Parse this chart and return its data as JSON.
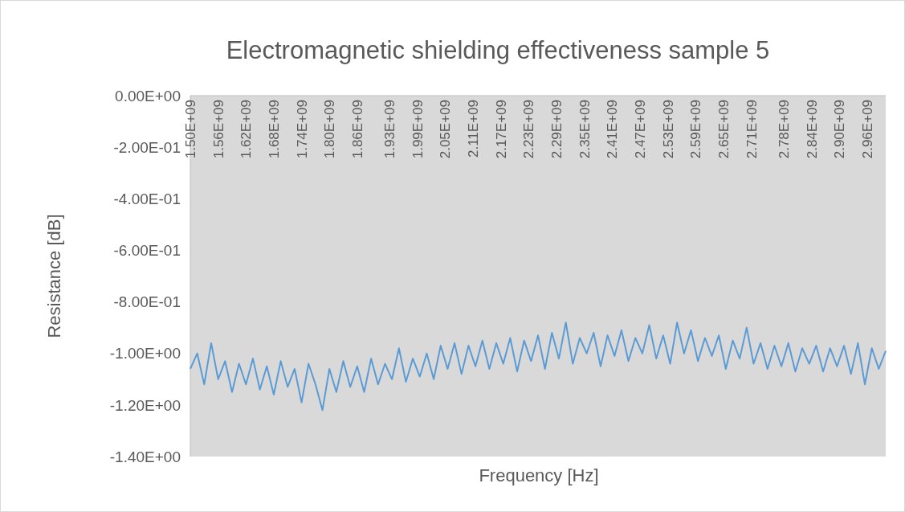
{
  "chart_data": {
    "type": "line",
    "title": "Electromagnetic shielding effectiveness sample 5",
    "xlabel": "Frequency [Hz]",
    "ylabel": "Resistance [dB]",
    "xlim": [
      1500000000.0,
      3000000000.0
    ],
    "xticks": [
      {
        "value": 1500000000.0,
        "label": "1.50E+09"
      },
      {
        "value": 1560000000.0,
        "label": "1.56E+09"
      },
      {
        "value": 1620000000.0,
        "label": "1.62E+09"
      },
      {
        "value": 1680000000.0,
        "label": "1.68E+09"
      },
      {
        "value": 1740000000.0,
        "label": "1.74E+09"
      },
      {
        "value": 1800000000.0,
        "label": "1.80E+09"
      },
      {
        "value": 1860000000.0,
        "label": "1.86E+09"
      },
      {
        "value": 1930000000.0,
        "label": "1.93E+09"
      },
      {
        "value": 1990000000.0,
        "label": "1.99E+09"
      },
      {
        "value": 2050000000.0,
        "label": "2.05E+09"
      },
      {
        "value": 2110000000.0,
        "label": "2.11E+09"
      },
      {
        "value": 2170000000.0,
        "label": "2.17E+09"
      },
      {
        "value": 2230000000.0,
        "label": "2.23E+09"
      },
      {
        "value": 2290000000.0,
        "label": "2.29E+09"
      },
      {
        "value": 2350000000.0,
        "label": "2.35E+09"
      },
      {
        "value": 2410000000.0,
        "label": "2.41E+09"
      },
      {
        "value": 2470000000.0,
        "label": "2.47E+09"
      },
      {
        "value": 2530000000.0,
        "label": "2.53E+09"
      },
      {
        "value": 2590000000.0,
        "label": "2.59E+09"
      },
      {
        "value": 2650000000.0,
        "label": "2.65E+09"
      },
      {
        "value": 2710000000.0,
        "label": "2.71E+09"
      },
      {
        "value": 2780000000.0,
        "label": "2.78E+09"
      },
      {
        "value": 2840000000.0,
        "label": "2.84E+09"
      },
      {
        "value": 2900000000.0,
        "label": "2.90E+09"
      },
      {
        "value": 2960000000.0,
        "label": "2.96E+09"
      }
    ],
    "ylim": [
      -1.4,
      0
    ],
    "yticks": [
      {
        "value": 0,
        "label": "0.00E+00"
      },
      {
        "value": -0.2,
        "label": "-2.00E-01"
      },
      {
        "value": -0.4,
        "label": "-4.00E-01"
      },
      {
        "value": -0.6,
        "label": "-6.00E-01"
      },
      {
        "value": -0.8,
        "label": "-8.00E-01"
      },
      {
        "value": -1.0,
        "label": "-1.00E+00"
      },
      {
        "value": -1.2,
        "label": "-1.20E+00"
      },
      {
        "value": -1.4,
        "label": "-1.40E+00"
      }
    ],
    "series": [
      {
        "color": "#5b9bd5",
        "x": [
          1500000000.0,
          1515000000.0,
          1530000000.0,
          1545000000.0,
          1560000000.0,
          1575000000.0,
          1590000000.0,
          1605000000.0,
          1620000000.0,
          1635000000.0,
          1650000000.0,
          1665000000.0,
          1680000000.0,
          1695000000.0,
          1710000000.0,
          1725000000.0,
          1740000000.0,
          1755000000.0,
          1770000000.0,
          1785000000.0,
          1800000000.0,
          1815000000.0,
          1830000000.0,
          1845000000.0,
          1860000000.0,
          1875000000.0,
          1890000000.0,
          1905000000.0,
          1920000000.0,
          1935000000.0,
          1950000000.0,
          1965000000.0,
          1980000000.0,
          1995000000.0,
          2010000000.0,
          2025000000.0,
          2040000000.0,
          2055000000.0,
          2070000000.0,
          2085000000.0,
          2100000000.0,
          2115000000.0,
          2130000000.0,
          2145000000.0,
          2160000000.0,
          2175000000.0,
          2190000000.0,
          2205000000.0,
          2220000000.0,
          2235000000.0,
          2250000000.0,
          2265000000.0,
          2280000000.0,
          2295000000.0,
          2310000000.0,
          2325000000.0,
          2340000000.0,
          2355000000.0,
          2370000000.0,
          2385000000.0,
          2400000000.0,
          2415000000.0,
          2430000000.0,
          2445000000.0,
          2460000000.0,
          2475000000.0,
          2490000000.0,
          2505000000.0,
          2520000000.0,
          2535000000.0,
          2550000000.0,
          2565000000.0,
          2580000000.0,
          2595000000.0,
          2610000000.0,
          2625000000.0,
          2640000000.0,
          2655000000.0,
          2670000000.0,
          2685000000.0,
          2700000000.0,
          2715000000.0,
          2730000000.0,
          2745000000.0,
          2760000000.0,
          2775000000.0,
          2790000000.0,
          2805000000.0,
          2820000000.0,
          2835000000.0,
          2850000000.0,
          2865000000.0,
          2880000000.0,
          2895000000.0,
          2910000000.0,
          2925000000.0,
          2940000000.0,
          2955000000.0,
          2970000000.0,
          2985000000.0,
          3000000000.0
        ],
        "values": [
          -1.06,
          -1.0,
          -1.12,
          -0.96,
          -1.1,
          -1.03,
          -1.15,
          -1.04,
          -1.12,
          -1.02,
          -1.14,
          -1.05,
          -1.16,
          -1.03,
          -1.13,
          -1.06,
          -1.19,
          -1.04,
          -1.12,
          -1.22,
          -1.06,
          -1.15,
          -1.03,
          -1.13,
          -1.05,
          -1.15,
          -1.02,
          -1.12,
          -1.04,
          -1.1,
          -0.98,
          -1.11,
          -1.02,
          -1.09,
          -1.0,
          -1.1,
          -0.97,
          -1.06,
          -0.96,
          -1.08,
          -0.97,
          -1.05,
          -0.95,
          -1.06,
          -0.96,
          -1.04,
          -0.94,
          -1.07,
          -0.95,
          -1.03,
          -0.93,
          -1.06,
          -0.92,
          -1.02,
          -0.88,
          -1.04,
          -0.94,
          -1.0,
          -0.92,
          -1.05,
          -0.93,
          -1.01,
          -0.91,
          -1.03,
          -0.94,
          -1.0,
          -0.89,
          -1.02,
          -0.93,
          -1.04,
          -0.88,
          -1.0,
          -0.91,
          -1.03,
          -0.94,
          -1.01,
          -0.93,
          -1.06,
          -0.95,
          -1.02,
          -0.9,
          -1.04,
          -0.96,
          -1.06,
          -0.97,
          -1.05,
          -0.96,
          -1.07,
          -0.98,
          -1.04,
          -0.97,
          -1.07,
          -0.98,
          -1.05,
          -0.97,
          -1.08,
          -0.96,
          -1.12,
          -0.98,
          -1.06,
          -0.99
        ]
      }
    ]
  }
}
